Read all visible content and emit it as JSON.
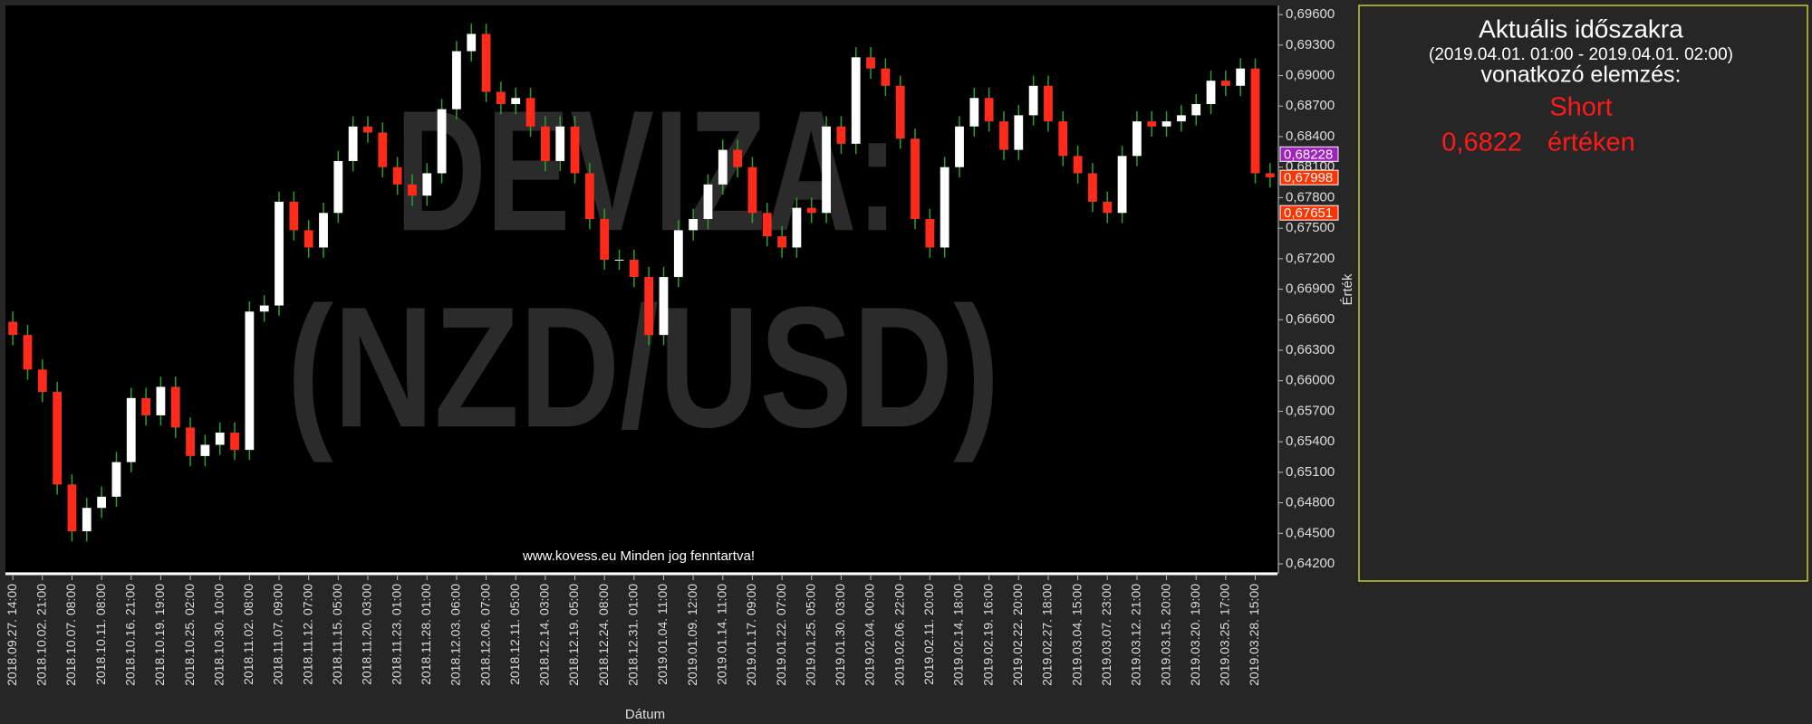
{
  "chart_data": {
    "type": "candlestick",
    "x_label": "Dátum",
    "y_label": "Érték",
    "watermark": [
      "DEVIZA:",
      "(NZD/USD)"
    ],
    "footer": "www.kovess.eu Minden jog fenntartva!",
    "up_color": "#ffffff",
    "down_color": "#ff2a1a",
    "wick_color": "#2e9e2e",
    "grid": false,
    "categories": [
      "2018.09.27. 14:00",
      null,
      "2018.10.02. 21:00",
      null,
      "2018.10.07. 08:00",
      null,
      "2018.10.11. 08:00",
      null,
      "2018.10.16. 21:00",
      null,
      "2018.10.19. 19:00",
      null,
      "2018.10.25. 02:00",
      null,
      "2018.10.30. 10:00",
      null,
      "2018.11.02. 08:00",
      null,
      "2018.11.07. 09:00",
      null,
      "2018.11.12. 07:00",
      null,
      "2018.11.15. 05:00",
      null,
      "2018.11.20. 03:00",
      null,
      "2018.11.23. 01:00",
      null,
      "2018.11.28. 01:00",
      null,
      "2018.12.03. 06:00",
      null,
      "2018.12.06. 07:00",
      null,
      "2018.12.11. 05:00",
      null,
      "2018.12.14. 03:00",
      null,
      "2018.12.19. 05:00",
      null,
      "2018.12.24. 08:00",
      null,
      "2018.12.31. 01:00",
      null,
      "2019.01.04. 11:00",
      null,
      "2019.01.09. 12:00",
      null,
      "2019.01.14. 11:00",
      null,
      "2019.01.17. 09:00",
      null,
      "2019.01.22. 07:00",
      null,
      "2019.01.25. 05:00",
      null,
      "2019.01.30. 03:00",
      null,
      "2019.02.04. 00:00",
      null,
      "2019.02.06. 22:00",
      null,
      "2019.02.11. 20:00",
      null,
      "2019.02.14. 18:00",
      null,
      "2019.02.19. 16:00",
      null,
      "2019.02.22. 20:00",
      null,
      "2019.02.27. 18:00",
      null,
      "2019.03.04. 15:00",
      null,
      "2019.03.07. 23:00",
      null,
      "2019.03.12. 21:00",
      null,
      "2019.03.15. 20:00",
      null,
      "2019.03.20. 19:00",
      null,
      "2019.03.25. 17:00",
      null,
      "2019.03.28. 15:00",
      null
    ],
    "open": [
      0.6658,
      0.6645,
      0.6611,
      0.6589,
      0.6498,
      0.6452,
      0.6475,
      0.6486,
      0.652,
      0.6583,
      0.6566,
      0.6594,
      0.6554,
      0.6526,
      0.6537,
      0.6549,
      0.6532,
      0.6668,
      0.6674,
      0.6776,
      0.6748,
      0.6731,
      0.6765,
      0.6816,
      0.685,
      0.6844,
      0.681,
      0.6793,
      0.6782,
      0.6804,
      0.6867,
      0.6924,
      0.6941,
      0.6884,
      0.6872,
      0.6878,
      0.685,
      0.6816,
      0.685,
      0.6804,
      0.6759,
      0.6719,
      0.6719,
      0.6702,
      0.6645,
      0.6702,
      0.6748,
      0.6759,
      0.6793,
      0.6827,
      0.681,
      0.6765,
      0.6742,
      0.6731,
      0.677,
      0.6765,
      0.685,
      0.6833,
      0.6918,
      0.6907,
      0.689,
      0.6838,
      0.6759,
      0.6731,
      0.681,
      0.685,
      0.6878,
      0.6855,
      0.6827,
      0.6861,
      0.689,
      0.6855,
      0.6821,
      0.6804,
      0.6776,
      0.6765,
      0.6821,
      0.6855,
      0.685,
      0.6855,
      0.6861,
      0.6872,
      0.6895,
      0.689,
      0.6907,
      0.6804
    ],
    "high": [
      0.6668,
      0.6655,
      0.6621,
      0.6599,
      0.6508,
      0.6485,
      0.6496,
      0.653,
      0.6593,
      0.6593,
      0.6604,
      0.6604,
      0.6564,
      0.6547,
      0.6559,
      0.6559,
      0.6678,
      0.6684,
      0.6786,
      0.6786,
      0.6758,
      0.6775,
      0.6826,
      0.686,
      0.686,
      0.6854,
      0.682,
      0.6803,
      0.6814,
      0.6877,
      0.6934,
      0.6951,
      0.6951,
      0.6894,
      0.6888,
      0.6888,
      0.686,
      0.686,
      0.686,
      0.6814,
      0.6769,
      0.6729,
      0.6729,
      0.6712,
      0.6712,
      0.6758,
      0.6769,
      0.6803,
      0.6837,
      0.6837,
      0.682,
      0.6775,
      0.6752,
      0.678,
      0.678,
      0.686,
      0.686,
      0.6928,
      0.6928,
      0.6917,
      0.69,
      0.6848,
      0.6769,
      0.682,
      0.686,
      0.6888,
      0.6888,
      0.6865,
      0.6871,
      0.69,
      0.69,
      0.6865,
      0.6831,
      0.6814,
      0.6786,
      0.6831,
      0.6865,
      0.6865,
      0.6865,
      0.6871,
      0.6882,
      0.6905,
      0.6905,
      0.6917,
      0.6917,
      0.6814
    ],
    "low": [
      0.6635,
      0.6601,
      0.6579,
      0.6488,
      0.6442,
      0.6442,
      0.6465,
      0.6476,
      0.651,
      0.6556,
      0.6556,
      0.6544,
      0.6516,
      0.6516,
      0.6527,
      0.6522,
      0.6522,
      0.6658,
      0.6664,
      0.6738,
      0.6721,
      0.6721,
      0.6755,
      0.6806,
      0.6834,
      0.68,
      0.6783,
      0.6772,
      0.6772,
      0.6794,
      0.6857,
      0.6914,
      0.6874,
      0.6862,
      0.6862,
      0.684,
      0.6806,
      0.6806,
      0.6794,
      0.6749,
      0.6709,
      0.6709,
      0.6692,
      0.6635,
      0.6635,
      0.6692,
      0.6738,
      0.6749,
      0.6783,
      0.68,
      0.6755,
      0.6732,
      0.6721,
      0.6721,
      0.6755,
      0.6755,
      0.6823,
      0.6823,
      0.6897,
      0.688,
      0.6828,
      0.6749,
      0.6721,
      0.6721,
      0.68,
      0.684,
      0.6845,
      0.6817,
      0.6817,
      0.6851,
      0.6845,
      0.6811,
      0.6794,
      0.6766,
      0.6755,
      0.6755,
      0.6811,
      0.684,
      0.684,
      0.6845,
      0.6851,
      0.6862,
      0.688,
      0.688,
      0.6794,
      0.679
    ],
    "close": [
      0.6645,
      0.6611,
      0.6589,
      0.6498,
      0.6452,
      0.6475,
      0.6486,
      0.652,
      0.6583,
      0.6566,
      0.6594,
      0.6554,
      0.6526,
      0.6537,
      0.6549,
      0.6532,
      0.6668,
      0.6674,
      0.6776,
      0.6748,
      0.6731,
      0.6765,
      0.6816,
      0.685,
      0.6844,
      0.681,
      0.6793,
      0.6782,
      0.6804,
      0.6867,
      0.6924,
      0.6941,
      0.6884,
      0.6872,
      0.6878,
      0.685,
      0.6816,
      0.685,
      0.6804,
      0.6759,
      0.6719,
      0.6719,
      0.6702,
      0.6645,
      0.6702,
      0.6748,
      0.6759,
      0.6793,
      0.6827,
      0.681,
      0.6765,
      0.6742,
      0.6731,
      0.677,
      0.6765,
      0.685,
      0.6833,
      0.6918,
      0.6907,
      0.689,
      0.6838,
      0.6759,
      0.6731,
      0.681,
      0.685,
      0.6878,
      0.6855,
      0.6827,
      0.6861,
      0.689,
      0.6855,
      0.6821,
      0.6804,
      0.6776,
      0.6765,
      0.6821,
      0.6855,
      0.685,
      0.6855,
      0.6861,
      0.6872,
      0.6895,
      0.689,
      0.6907,
      0.6804,
      0.68
    ],
    "ylim": [
      0.6412,
      0.6969
    ],
    "yticks": [
      {
        "value": 0.642,
        "label": "0,64200"
      },
      {
        "value": 0.645,
        "label": "0,64500"
      },
      {
        "value": 0.648,
        "label": "0,64800"
      },
      {
        "value": 0.651,
        "label": "0,65100"
      },
      {
        "value": 0.654,
        "label": "0,65400"
      },
      {
        "value": 0.657,
        "label": "0,65700"
      },
      {
        "value": 0.66,
        "label": "0,66000"
      },
      {
        "value": 0.663,
        "label": "0,66300"
      },
      {
        "value": 0.666,
        "label": "0,66600"
      },
      {
        "value": 0.669,
        "label": "0,66900"
      },
      {
        "value": 0.672,
        "label": "0,67200"
      },
      {
        "value": 0.675,
        "label": "0,67500"
      },
      {
        "value": 0.678,
        "label": "0,67800"
      },
      {
        "value": 0.681,
        "label": "0,68100"
      },
      {
        "value": 0.684,
        "label": "0,68400"
      },
      {
        "value": 0.687,
        "label": "0,68700"
      },
      {
        "value": 0.69,
        "label": "0,69000"
      },
      {
        "value": 0.693,
        "label": "0,69300"
      },
      {
        "value": 0.696,
        "label": "0,69600"
      }
    ],
    "price_markers": [
      {
        "value": 0.68228,
        "label": "0,68228",
        "color": "#a020c0"
      },
      {
        "value": 0.67998,
        "label": "0,67998",
        "color": "#ff3300"
      },
      {
        "value": 0.67651,
        "label": "0,67651",
        "color": "#ff3300"
      }
    ]
  },
  "panel": {
    "title": "Aktuális időszakra",
    "period": "(2019.04.01. 01:00 - 2019.04.01. 02:00)",
    "subtitle": "vonatkozó elemzés:",
    "signal": "Short",
    "price": "0,6822",
    "price_suffix": "értéken"
  }
}
